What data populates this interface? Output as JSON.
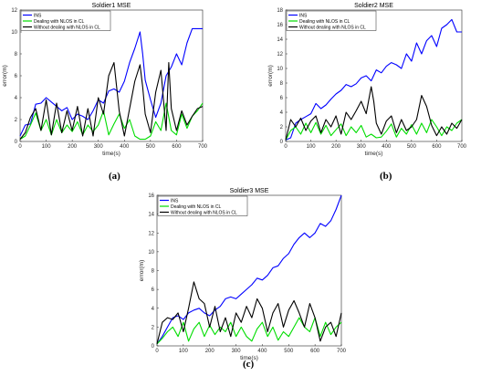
{
  "chart_data": [
    {
      "type": "line",
      "title": "Soldier1 MSE",
      "xlabel": "time(s)",
      "ylabel": "error(m)",
      "xlim": [
        0,
        700
      ],
      "ylim": [
        0,
        12
      ],
      "xticks": [
        "0",
        "100",
        "200",
        "300",
        "400",
        "500",
        "600",
        "700"
      ],
      "yticks": [
        "0",
        "2",
        "4",
        "6",
        "8",
        "10",
        "12"
      ],
      "panel_label": "(a)",
      "legend": "top-left",
      "series": [
        {
          "name": "INS",
          "color": "#0000ff",
          "x": [
            0,
            20,
            40,
            60,
            80,
            100,
            120,
            140,
            160,
            180,
            200,
            220,
            240,
            260,
            280,
            300,
            320,
            340,
            360,
            380,
            400,
            420,
            440,
            460,
            470,
            480,
            500,
            520,
            540,
            560,
            580,
            600,
            620,
            640,
            660,
            680,
            700
          ],
          "y": [
            0.5,
            1.5,
            1.6,
            3.4,
            3.5,
            4.0,
            3.6,
            3.2,
            2.8,
            3.1,
            2.0,
            2.5,
            2.3,
            2.0,
            2.8,
            3.8,
            3.5,
            4.6,
            4.8,
            4.5,
            5.5,
            7.2,
            8.5,
            10.0,
            8.0,
            5.6,
            3.8,
            2.2,
            3.5,
            6.0,
            6.8,
            8.0,
            7.0,
            9.0,
            10.3,
            10.3,
            10.3
          ]
        },
        {
          "name": "Dealing with NLOS in CL",
          "color": "#00dd00",
          "x": [
            0,
            20,
            40,
            60,
            80,
            100,
            120,
            140,
            160,
            180,
            200,
            220,
            240,
            260,
            280,
            300,
            320,
            340,
            360,
            380,
            400,
            420,
            440,
            460,
            480,
            500,
            520,
            540,
            560,
            580,
            600,
            620,
            640,
            660,
            680,
            700
          ],
          "y": [
            0.2,
            0.5,
            1.5,
            2.6,
            1.0,
            2.0,
            0.6,
            2.0,
            0.8,
            1.5,
            0.9,
            1.8,
            0.6,
            1.5,
            0.9,
            1.5,
            2.8,
            0.6,
            1.6,
            2.5,
            1.2,
            2.0,
            0.5,
            0.2,
            0.2,
            0.5,
            1.8,
            1.0,
            3.5,
            1.0,
            0.6,
            2.5,
            1.2,
            2.3,
            2.8,
            3.5
          ]
        },
        {
          "name": "Without dealing with NLOS in CL",
          "color": "#000000",
          "x": [
            0,
            20,
            40,
            60,
            80,
            100,
            120,
            140,
            160,
            180,
            200,
            220,
            240,
            260,
            280,
            300,
            320,
            340,
            360,
            380,
            400,
            420,
            440,
            460,
            470,
            480,
            500,
            520,
            540,
            560,
            570,
            580,
            600,
            620,
            640,
            660,
            680,
            700
          ],
          "y": [
            0.2,
            0.8,
            2.2,
            3.0,
            1.0,
            3.8,
            0.6,
            3.5,
            0.8,
            2.8,
            1.0,
            3.2,
            0.5,
            3.0,
            0.5,
            4.0,
            2.5,
            6.0,
            7.2,
            2.8,
            0.5,
            3.0,
            5.5,
            7.0,
            5.0,
            2.5,
            0.8,
            4.5,
            6.5,
            1.0,
            7.2,
            3.0,
            1.0,
            2.8,
            1.5,
            2.3,
            3.0,
            3.2
          ]
        }
      ]
    },
    {
      "type": "line",
      "title": "Soldier2 MSE",
      "xlabel": "time(s)",
      "ylabel": "error(m)",
      "xlim": [
        0,
        700
      ],
      "ylim": [
        0,
        18
      ],
      "xticks": [
        "0",
        "100",
        "200",
        "300",
        "400",
        "500",
        "600",
        "700"
      ],
      "yticks": [
        "0",
        "2",
        "4",
        "6",
        "8",
        "10",
        "12",
        "14",
        "16",
        "18"
      ],
      "panel_label": "(b)",
      "legend": "top-left",
      "series": [
        {
          "name": "INS",
          "color": "#0000ff",
          "x": [
            0,
            20,
            40,
            60,
            80,
            100,
            120,
            140,
            160,
            180,
            200,
            220,
            240,
            260,
            280,
            300,
            320,
            340,
            360,
            380,
            400,
            420,
            440,
            460,
            480,
            500,
            520,
            540,
            560,
            580,
            600,
            620,
            640,
            660,
            680,
            700
          ],
          "y": [
            0.2,
            0.5,
            2.5,
            3.0,
            3.4,
            3.8,
            5.2,
            4.5,
            5.0,
            5.8,
            6.5,
            7.0,
            7.8,
            7.5,
            7.9,
            8.7,
            9.0,
            8.3,
            9.8,
            9.4,
            10.3,
            10.8,
            10.5,
            10.0,
            12.0,
            11.0,
            13.5,
            12.0,
            13.8,
            14.5,
            13.0,
            15.5,
            16.0,
            16.7,
            15.0,
            15.0
          ]
        },
        {
          "name": "Dealing with NLOS in CL",
          "color": "#00dd00",
          "x": [
            0,
            20,
            40,
            60,
            80,
            100,
            120,
            140,
            160,
            180,
            200,
            220,
            240,
            260,
            280,
            300,
            320,
            340,
            360,
            380,
            400,
            420,
            440,
            460,
            480,
            500,
            520,
            540,
            560,
            580,
            600,
            620,
            640,
            660,
            680,
            700
          ],
          "y": [
            0.2,
            1.5,
            2.0,
            1.0,
            2.5,
            1.2,
            2.6,
            1.0,
            2.2,
            0.8,
            1.6,
            2.4,
            0.8,
            2.0,
            1.2,
            2.2,
            0.6,
            1.0,
            0.5,
            0.6,
            1.4,
            2.4,
            0.6,
            1.8,
            1.0,
            2.3,
            1.0,
            2.5,
            1.2,
            3.0,
            2.0,
            0.8,
            2.0,
            1.5,
            2.5,
            3.0
          ]
        },
        {
          "name": "Without dealing with NLOS in CL",
          "color": "#000000",
          "x": [
            0,
            20,
            40,
            60,
            80,
            100,
            120,
            140,
            160,
            180,
            200,
            220,
            240,
            260,
            280,
            300,
            320,
            340,
            350,
            360,
            380,
            400,
            420,
            440,
            460,
            480,
            500,
            520,
            540,
            560,
            580,
            600,
            620,
            640,
            660,
            680,
            700
          ],
          "y": [
            0.2,
            3.0,
            2.0,
            3.2,
            1.5,
            2.8,
            3.5,
            1.2,
            3.0,
            2.0,
            3.5,
            1.0,
            4.0,
            3.0,
            4.2,
            5.5,
            3.8,
            7.5,
            5.5,
            2.5,
            1.0,
            2.8,
            3.5,
            1.2,
            3.0,
            1.5,
            2.0,
            3.0,
            6.3,
            4.8,
            2.2,
            0.8,
            2.0,
            1.0,
            2.5,
            1.8,
            3.0
          ]
        }
      ]
    },
    {
      "type": "line",
      "title": "Soldier3 MSE",
      "xlabel": "time(s)",
      "ylabel": "error(m)",
      "xlim": [
        0,
        700
      ],
      "ylim": [
        0,
        16
      ],
      "xticks": [
        "0",
        "100",
        "200",
        "300",
        "400",
        "500",
        "600",
        "700"
      ],
      "yticks": [
        "0",
        "2",
        "4",
        "6",
        "8",
        "10",
        "12",
        "14",
        "16"
      ],
      "panel_label": "(c)",
      "legend": "top-left",
      "series": [
        {
          "name": "INS",
          "color": "#0000ff",
          "x": [
            0,
            20,
            40,
            60,
            80,
            100,
            120,
            140,
            160,
            180,
            200,
            220,
            240,
            260,
            280,
            300,
            320,
            340,
            360,
            380,
            400,
            420,
            440,
            460,
            480,
            500,
            520,
            540,
            560,
            580,
            600,
            620,
            640,
            660,
            680,
            700
          ],
          "y": [
            0.2,
            1.0,
            2.0,
            3.0,
            3.2,
            2.8,
            3.5,
            3.8,
            4.0,
            3.5,
            3.2,
            3.8,
            4.2,
            5.0,
            5.2,
            5.0,
            5.5,
            6.0,
            6.5,
            7.2,
            7.0,
            7.5,
            8.3,
            8.5,
            9.3,
            9.8,
            10.8,
            11.5,
            12.0,
            11.5,
            12.0,
            13.0,
            12.7,
            13.3,
            14.5,
            16.0
          ]
        },
        {
          "name": "Dealing with NLOS in CL",
          "color": "#00dd00",
          "x": [
            0,
            20,
            40,
            60,
            80,
            100,
            120,
            140,
            160,
            180,
            200,
            220,
            240,
            260,
            280,
            300,
            320,
            340,
            360,
            380,
            400,
            420,
            440,
            460,
            480,
            500,
            520,
            540,
            560,
            580,
            600,
            620,
            640,
            660,
            680,
            700
          ],
          "y": [
            0.2,
            0.8,
            1.5,
            2.0,
            1.0,
            2.5,
            0.5,
            1.8,
            2.5,
            1.0,
            2.2,
            1.2,
            2.0,
            1.5,
            2.5,
            1.0,
            2.0,
            1.0,
            0.5,
            1.8,
            2.5,
            1.0,
            2.0,
            0.6,
            1.5,
            1.0,
            2.0,
            3.0,
            2.0,
            1.5,
            3.0,
            1.0,
            2.5,
            1.2,
            2.0,
            2.5
          ]
        },
        {
          "name": "Without dealing with NLOS in CL",
          "color": "#000000",
          "x": [
            0,
            20,
            40,
            60,
            80,
            100,
            120,
            140,
            160,
            180,
            200,
            220,
            240,
            260,
            280,
            300,
            320,
            340,
            360,
            380,
            400,
            420,
            440,
            460,
            480,
            500,
            520,
            540,
            560,
            580,
            600,
            620,
            640,
            660,
            680,
            700
          ],
          "y": [
            0.2,
            2.5,
            3.0,
            2.8,
            3.5,
            1.5,
            4.0,
            6.8,
            5.0,
            4.5,
            2.0,
            4.2,
            1.5,
            3.0,
            1.0,
            3.5,
            2.5,
            4.2,
            3.0,
            5.0,
            4.0,
            1.5,
            3.5,
            4.5,
            2.0,
            3.8,
            4.8,
            3.5,
            2.0,
            4.5,
            3.0,
            0.5,
            2.0,
            2.5,
            1.0,
            3.5
          ]
        }
      ]
    }
  ]
}
